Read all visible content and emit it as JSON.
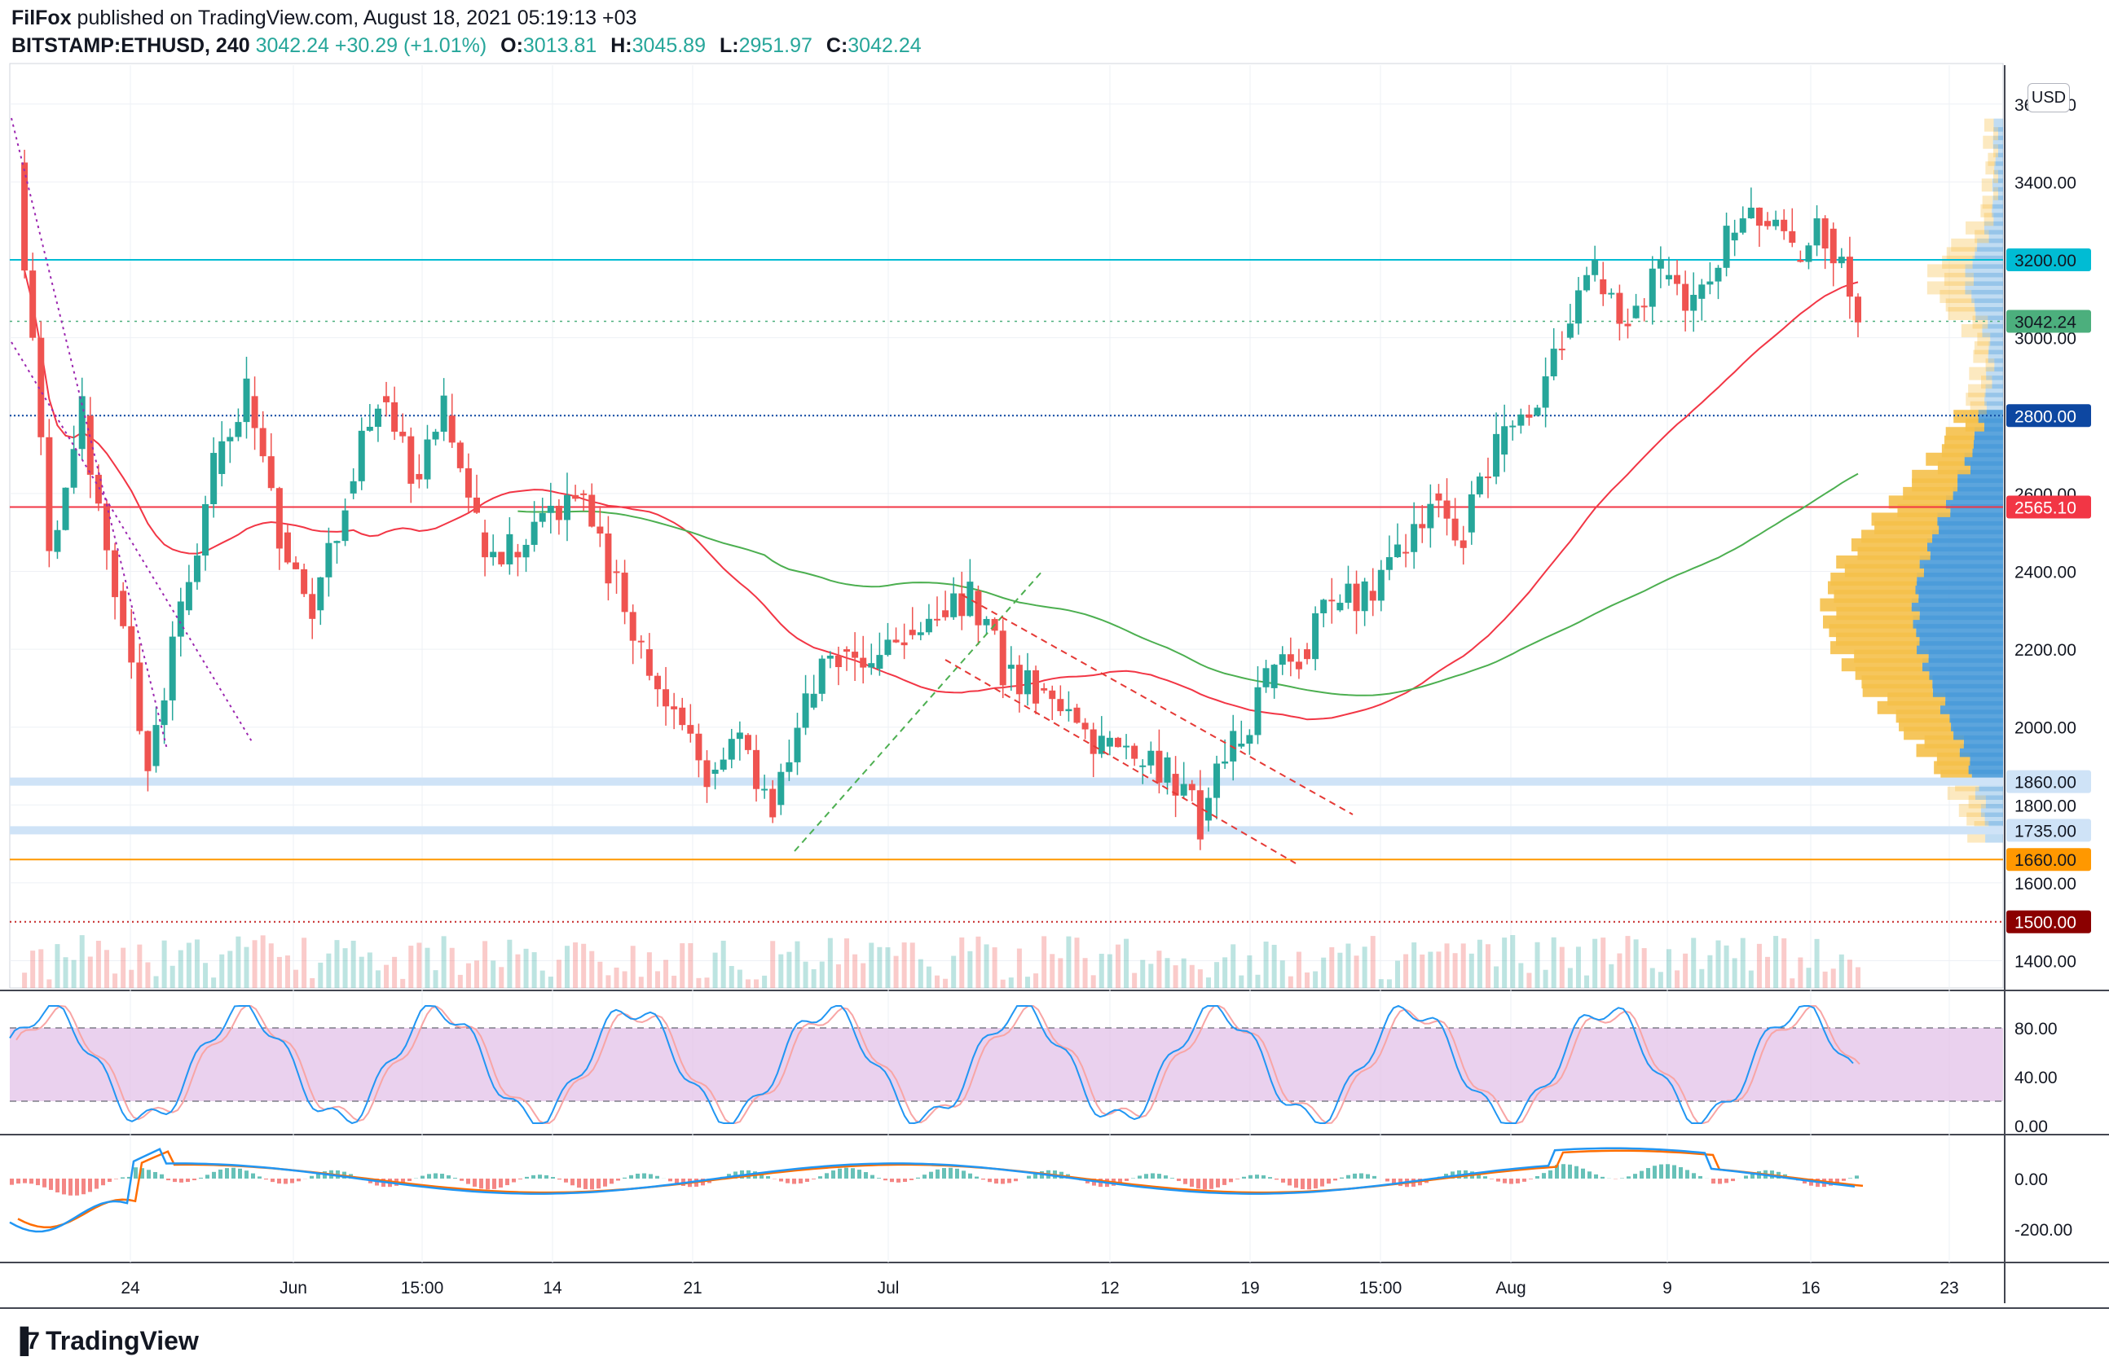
{
  "header": {
    "publisher": "FilFox",
    "published_text": " published on TradingView.com, August 18, 2021 05:19:13 +03",
    "symbol": "BITSTAMP:ETHUSD, 240",
    "last": "3042.24",
    "change": "+30.29 (+1.01%)",
    "o_label": "O:",
    "o_value": "3013.81",
    "h_label": "H:",
    "h_value": "3045.89",
    "l_label": "L:",
    "l_value": "2951.97",
    "c_label": "C:",
    "c_value": "3042.24"
  },
  "currency_button": "USD",
  "footer": {
    "brand": "TradingView",
    "logo_icon": "tradingview-logo-icon"
  },
  "price_axis": {
    "labels": [
      "3600.00",
      "3400.00",
      "3000.00",
      "2400.00",
      "2200.00",
      "2000.00",
      "1800.00",
      "1600.00",
      "1400.00"
    ],
    "values": [
      3600,
      3400,
      3000,
      2400,
      2200,
      2000,
      1800,
      1600,
      1400
    ],
    "hidden_partial": "2600.00"
  },
  "price_badges": [
    {
      "label": "3200.00",
      "value": 3200,
      "bg": "#00bcd4",
      "fg": "#131722"
    },
    {
      "label": "3042.24",
      "value": 3042.24,
      "bg": "#4caf7d",
      "fg": "#131722"
    },
    {
      "label": "2800.00",
      "value": 2800,
      "bg": "#0d47a1",
      "fg": "#ffffff"
    },
    {
      "label": "2565.10",
      "value": 2565.1,
      "bg": "#f23645",
      "fg": "#ffffff"
    },
    {
      "label": "1860.00",
      "value": 1860,
      "bg": "#cfe3f7",
      "fg": "#131722"
    },
    {
      "label": "1735.00",
      "value": 1735,
      "bg": "#cfe3f7",
      "fg": "#131722"
    },
    {
      "label": "1660.00",
      "value": 1660,
      "bg": "#ff9800",
      "fg": "#131722"
    },
    {
      "label": "1500.00",
      "value": 1500,
      "bg": "#8b0000",
      "fg": "#ffffff"
    }
  ],
  "stoch_axis": {
    "labels": [
      "80.00",
      "40.00",
      "0.00"
    ],
    "values": [
      80,
      40,
      0
    ]
  },
  "macd_axis": {
    "labels": [
      "0.00",
      "-200.00"
    ],
    "values": [
      0,
      -200
    ]
  },
  "time_axis": {
    "labels": [
      "24",
      "Jun",
      "15:00",
      "14",
      "21",
      "Jul",
      "12",
      "19",
      "15:00",
      "Aug",
      "9",
      "16",
      "23"
    ]
  },
  "colors": {
    "up": "#26a69a",
    "down": "#ef5350",
    "ma_fast": "#f23645",
    "ma_slow": "#4caf50",
    "stoch_fill": "#e1bee7",
    "stoch_k": "#2196f3",
    "stoch_d": "#f8a5a5",
    "macd_line": "#2196f3",
    "macd_signal": "#ff6d00",
    "vp_up": "#4a9bd9",
    "vp_down": "#f5c04a"
  },
  "chart_data": {
    "type": "candlestick",
    "symbol": "BITSTAMP:ETHUSD",
    "interval": "240",
    "ylim": [
      1330,
      3700
    ],
    "horizontal_levels": [
      3200,
      3042.24,
      2800,
      2565.1,
      1860,
      1735,
      1660,
      1500
    ],
    "approx_close_path": [
      {
        "x": "May 18",
        "y": 3450
      },
      {
        "x": "May 19",
        "y": 2450
      },
      {
        "x": "May 20",
        "y": 2800
      },
      {
        "x": "May 21",
        "y": 2350
      },
      {
        "x": "May 23",
        "y": 1900
      },
      {
        "x": "May 24",
        "y": 2300
      },
      {
        "x": "May 25",
        "y": 2650
      },
      {
        "x": "May 26",
        "y": 2850
      },
      {
        "x": "May 28",
        "y": 2500
      },
      {
        "x": "May 30",
        "y": 2300
      },
      {
        "x": "Jun 1",
        "y": 2600
      },
      {
        "x": "Jun 3",
        "y": 2850
      },
      {
        "x": "Jun 5",
        "y": 2650
      },
      {
        "x": "Jun 7",
        "y": 2800
      },
      {
        "x": "Jun 9",
        "y": 2500
      },
      {
        "x": "Jun 11",
        "y": 2450
      },
      {
        "x": "Jun 14",
        "y": 2550
      },
      {
        "x": "Jun 15",
        "y": 2600
      },
      {
        "x": "Jun 17",
        "y": 2400
      },
      {
        "x": "Jun 19",
        "y": 2200
      },
      {
        "x": "Jun 21",
        "y": 2050
      },
      {
        "x": "Jun 22",
        "y": 1880
      },
      {
        "x": "Jun 24",
        "y": 1980
      },
      {
        "x": "Jun 26",
        "y": 1800
      },
      {
        "x": "Jun 28",
        "y": 2050
      },
      {
        "x": "Jun 30",
        "y": 2200
      },
      {
        "x": "Jul 1",
        "y": 2150
      },
      {
        "x": "Jul 3",
        "y": 2250
      },
      {
        "x": "Jul 5",
        "y": 2300
      },
      {
        "x": "Jul 7",
        "y": 2350
      },
      {
        "x": "Jul 8",
        "y": 2150
      },
      {
        "x": "Jul 10",
        "y": 2100
      },
      {
        "x": "Jul 12",
        "y": 2050
      },
      {
        "x": "Jul 14",
        "y": 1950
      },
      {
        "x": "Jul 16",
        "y": 1900
      },
      {
        "x": "Jul 18",
        "y": 1880
      },
      {
        "x": "Jul 20",
        "y": 1760
      },
      {
        "x": "Jul 21",
        "y": 1950
      },
      {
        "x": "Jul 23",
        "y": 2100
      },
      {
        "x": "Jul 25",
        "y": 2200
      },
      {
        "x": "Jul 27",
        "y": 2300
      },
      {
        "x": "Jul 29",
        "y": 2350
      },
      {
        "x": "Jul 31",
        "y": 2450
      },
      {
        "x": "Aug 1",
        "y": 2600
      },
      {
        "x": "Aug 3",
        "y": 2500
      },
      {
        "x": "Aug 4",
        "y": 2700
      },
      {
        "x": "Aug 5",
        "y": 2800
      },
      {
        "x": "Aug 6",
        "y": 3000
      },
      {
        "x": "Aug 7",
        "y": 3150
      },
      {
        "x": "Aug 8",
        "y": 3050
      },
      {
        "x": "Aug 10",
        "y": 3150
      },
      {
        "x": "Aug 12",
        "y": 3100
      },
      {
        "x": "Aug 13",
        "y": 3250
      },
      {
        "x": "Aug 14",
        "y": 3300
      },
      {
        "x": "Aug 15",
        "y": 3200
      },
      {
        "x": "Aug 16",
        "y": 3280
      },
      {
        "x": "Aug 17",
        "y": 3042.24
      }
    ]
  }
}
